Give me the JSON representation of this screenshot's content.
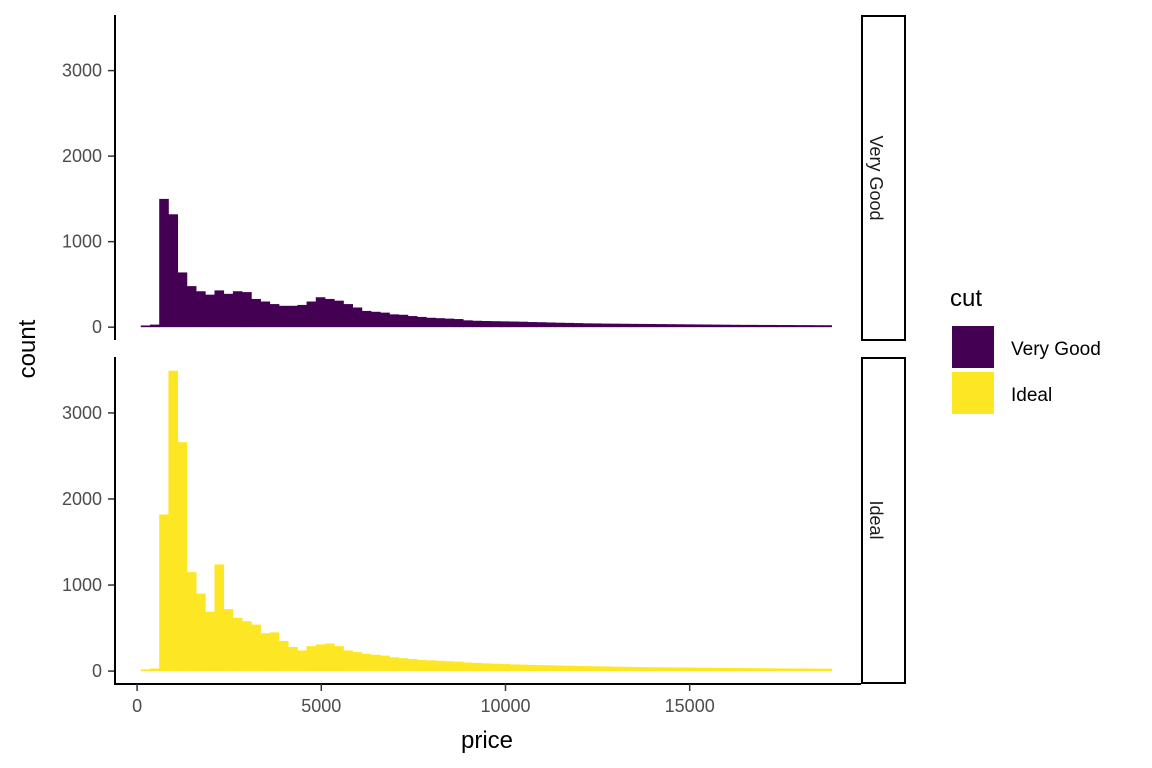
{
  "chart_data": {
    "type": "bar",
    "subtype": "faceted histogram",
    "title": "",
    "xlabel": "price",
    "ylabel": "count",
    "xlim": [
      -600,
      19650
    ],
    "ylim": [
      -150,
      3650
    ],
    "x_ticks": [
      0,
      5000,
      10000,
      15000
    ],
    "x_tick_labels": [
      "0",
      "5000",
      "10000",
      "15000"
    ],
    "y_ticks": [
      0,
      1000,
      2000,
      3000
    ],
    "y_tick_labels": [
      "0",
      "1000",
      "2000",
      "3000"
    ],
    "bin_start": 100,
    "bin_width": 250,
    "grid": false,
    "legend": {
      "title": "cut",
      "placement": "right",
      "entries": [
        {
          "label": "Very Good",
          "color": "#440154"
        },
        {
          "label": "Ideal",
          "color": "#FDE725"
        }
      ]
    },
    "facets": [
      {
        "label": "Very Good",
        "color": "#440154",
        "values": [
          20,
          30,
          1500,
          1320,
          640,
          480,
          420,
          380,
          430,
          390,
          420,
          410,
          330,
          300,
          270,
          250,
          250,
          260,
          300,
          350,
          330,
          310,
          270,
          230,
          190,
          180,
          170,
          150,
          145,
          130,
          120,
          110,
          105,
          100,
          95,
          80,
          75,
          72,
          70,
          68,
          66,
          64,
          60,
          58,
          55,
          52,
          50,
          48,
          45,
          44,
          42,
          41,
          40,
          39,
          38,
          37,
          36,
          35,
          34,
          33,
          32,
          31,
          30,
          29,
          28,
          27,
          27,
          26,
          26,
          25,
          25,
          24,
          24,
          23,
          23
        ]
      },
      {
        "label": "Ideal",
        "color": "#FDE725",
        "values": [
          20,
          30,
          1820,
          3490,
          2660,
          1150,
          900,
          690,
          1240,
          720,
          620,
          580,
          540,
          440,
          450,
          350,
          280,
          240,
          290,
          310,
          320,
          290,
          240,
          220,
          200,
          190,
          180,
          160,
          150,
          140,
          130,
          125,
          120,
          115,
          110,
          100,
          95,
          90,
          85,
          82,
          78,
          75,
          72,
          70,
          68,
          65,
          62,
          60,
          58,
          56,
          54,
          52,
          50,
          48,
          46,
          45,
          44,
          43,
          42,
          41,
          40,
          39,
          38,
          37,
          36,
          35,
          34,
          33,
          32,
          31,
          30,
          30,
          29,
          28,
          28
        ]
      }
    ]
  }
}
